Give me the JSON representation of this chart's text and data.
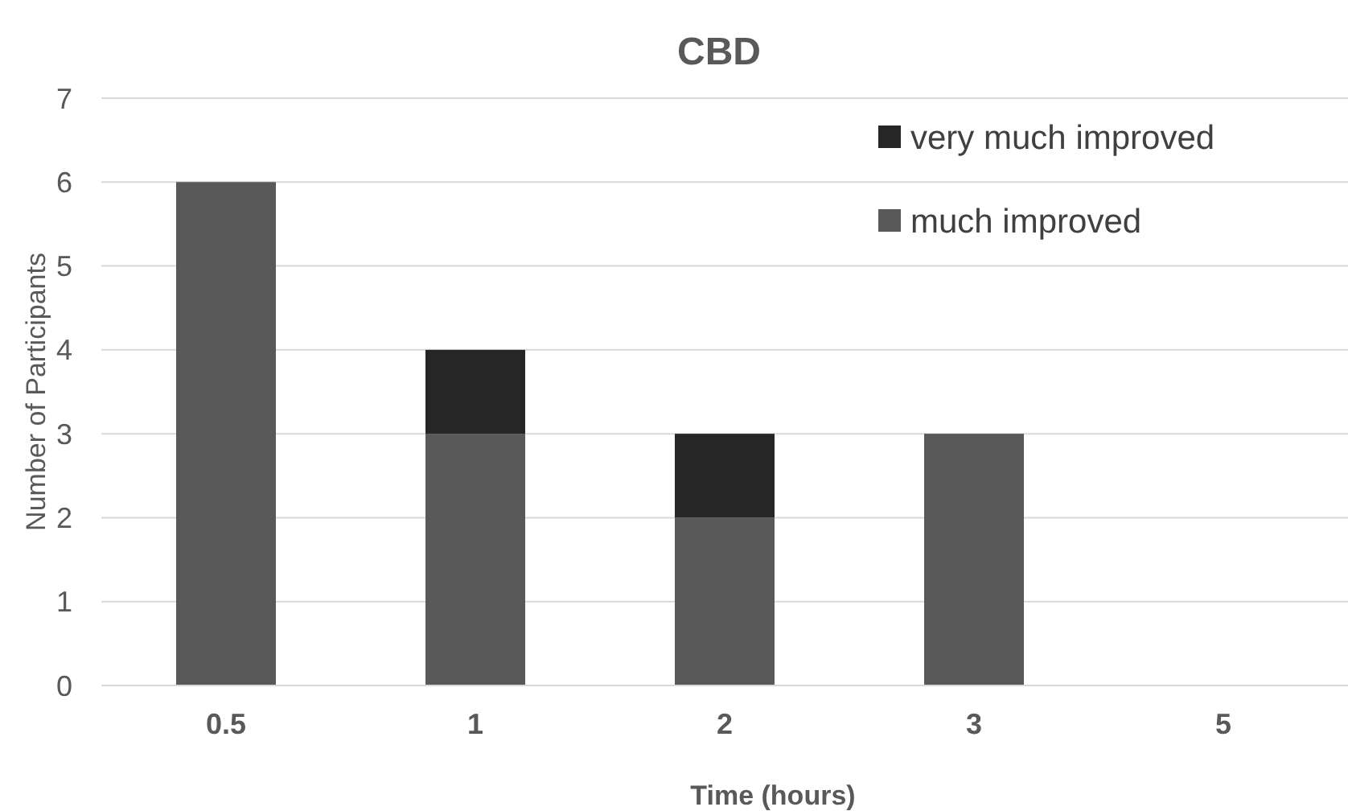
{
  "chart_data": {
    "type": "bar",
    "title": "CBD",
    "xlabel": "Time (hours)",
    "ylabel": "Number of Participants",
    "categories": [
      "0.5",
      "1",
      "2",
      "3",
      "5"
    ],
    "series": [
      {
        "name": "much improved",
        "color": "#595959",
        "values": [
          6,
          3,
          2,
          3,
          0
        ]
      },
      {
        "name": "very much improved",
        "color": "#262626",
        "values": [
          0,
          1,
          1,
          0,
          0
        ]
      }
    ],
    "stacked": true,
    "ylim": [
      0,
      7
    ],
    "yticks": [
      0,
      1,
      2,
      3,
      4,
      5,
      6,
      7
    ],
    "grid": "y",
    "legend": "top right"
  }
}
